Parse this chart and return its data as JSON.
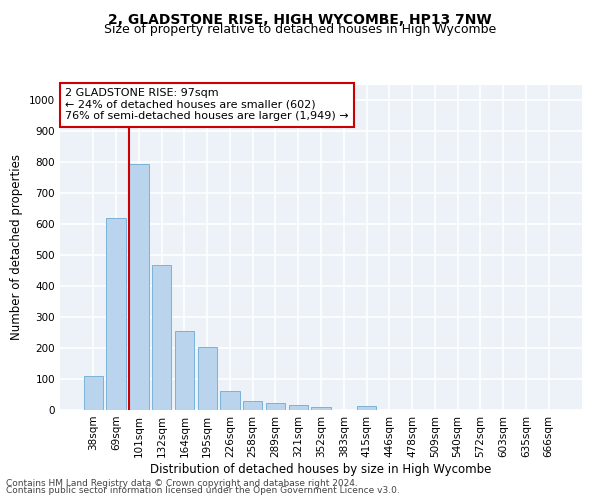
{
  "title": "2, GLADSTONE RISE, HIGH WYCOMBE, HP13 7NW",
  "subtitle": "Size of property relative to detached houses in High Wycombe",
  "xlabel": "Distribution of detached houses by size in High Wycombe",
  "ylabel": "Number of detached properties",
  "categories": [
    "38sqm",
    "69sqm",
    "101sqm",
    "132sqm",
    "164sqm",
    "195sqm",
    "226sqm",
    "258sqm",
    "289sqm",
    "321sqm",
    "352sqm",
    "383sqm",
    "415sqm",
    "446sqm",
    "478sqm",
    "509sqm",
    "540sqm",
    "572sqm",
    "603sqm",
    "635sqm",
    "666sqm"
  ],
  "values": [
    110,
    620,
    795,
    470,
    255,
    205,
    63,
    30,
    22,
    17,
    10,
    0,
    12,
    0,
    0,
    0,
    0,
    0,
    0,
    0,
    0
  ],
  "bar_color": "#bad4ee",
  "bar_edge_color": "#6aaad4",
  "highlight_color": "#cc0000",
  "annotation_text": "2 GLADSTONE RISE: 97sqm\n← 24% of detached houses are smaller (602)\n76% of semi-detached houses are larger (1,949) →",
  "annotation_box_color": "#ffffff",
  "annotation_box_edge_color": "#cc0000",
  "vline_x_index": 2,
  "ylim": [
    0,
    1050
  ],
  "yticks": [
    0,
    100,
    200,
    300,
    400,
    500,
    600,
    700,
    800,
    900,
    1000
  ],
  "background_color": "#edf2f9",
  "grid_color": "#ffffff",
  "title_fontsize": 10,
  "subtitle_fontsize": 9,
  "axis_label_fontsize": 8.5,
  "tick_fontsize": 7.5,
  "annotation_fontsize": 8,
  "footer_fontsize": 6.5
}
